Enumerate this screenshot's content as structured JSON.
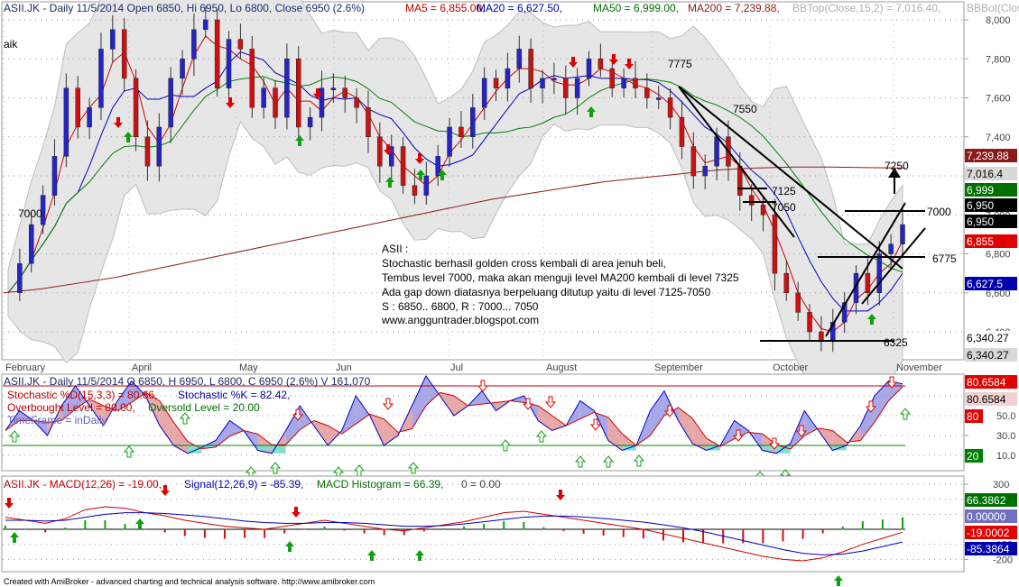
{
  "price_pane": {
    "header": [
      {
        "text": "ASII.JK - Daily 11/5/2014 Open 6850, Hi 6950, Lo 6800, Close 6950 (2.6%)",
        "color": "#1f2a6b"
      },
      {
        "text": "MA5 = 6,855.00,",
        "color": "#c00000"
      },
      {
        "text": "MA20 = 6,627.50,",
        "color": "#0000b0"
      },
      {
        "text": "MA50 = 6,999.00,",
        "color": "#007000"
      },
      {
        "text": "MA200 = 7,239.88,",
        "color": "#8b1a1a"
      },
      {
        "text": "BBTop(Close,15,2) = 7,016.40,",
        "color": "#b0b0b0"
      },
      {
        "text": "BBBot(Clos",
        "color": "#b0b0b0"
      }
    ],
    "fragment": "aik",
    "y_ticks": [
      "8,000",
      "7,800",
      "7,600",
      "7,400",
      "7,200",
      "7,000",
      "6,800",
      "6,600",
      "6,400"
    ],
    "y_range": [
      6320,
      8040
    ],
    "right_tags": [
      {
        "text": "7,239.88",
        "bg": "#8b1a1a",
        "fg": "#ffffff",
        "v": 7239.88
      },
      {
        "text": "7,016.4",
        "bg": "#d8d8d8",
        "fg": "#000000",
        "v": 7016.4
      },
      {
        "text": "6,999",
        "bg": "#007000",
        "fg": "#ffffff",
        "v": 6999
      },
      {
        "text": "6,950",
        "bg": "#000000",
        "fg": "#ffffff",
        "v": 6950
      },
      {
        "text": "6,950",
        "bg": "#000000",
        "fg": "#ffffff",
        "v": 6950
      },
      {
        "text": "6,855",
        "bg": "#e00000",
        "fg": "#ffffff",
        "v": 6855
      },
      {
        "text": "6,627.5",
        "bg": "#0000b0",
        "fg": "#ffffff",
        "v": 6627.5
      },
      {
        "text": "6,340.27",
        "bg": "#ffffff",
        "fg": "#000000",
        "v": 6340.27
      },
      {
        "text": "6,340.27",
        "bg": "#d8d8d8",
        "fg": "#000000",
        "v": 6340.27
      }
    ],
    "months": [
      "February",
      "April",
      "May",
      "Jun",
      "Jul",
      "August",
      "September",
      "October",
      "November"
    ],
    "level_labels": [
      "7000",
      "7775",
      "7550",
      "7125",
      "7050",
      "7250",
      "7000",
      "6775",
      "6325"
    ],
    "annotation": [
      "ASII :",
      "Stochastic berhasil golden cross kembali di area jenuh beli,",
      "Tembus level 7000, maka akan menguji level MA200 kembali di level 7325",
      "Ada gap down diatasnya berpeluang ditutup yaitu di level 7125-7050",
      "S : 6850.. 6800, R : 7000... 7050",
      "www.angguntrader.blogspot.com"
    ]
  },
  "stoch_pane": {
    "header": "ASII.JK - Daily 11/5/2014 O 6850, H 6950, L 6800, C 6950 (2.6%) V 161,070",
    "line2": [
      {
        "text": "Stochastic %D(15,3,3) = 80.66,",
        "color": "#c00000"
      },
      {
        "text": "Stochastic %K = 82.42,",
        "color": "#0000b0"
      }
    ],
    "line3": [
      {
        "text": "Overbought Level = 80.00,",
        "color": "#c00000"
      },
      {
        "text": "Oversold Level = 20.00",
        "color": "#007000"
      }
    ],
    "line4": {
      "text": "TimeFrame = inDaily",
      "color": "#6060c0"
    },
    "y_ticks": [
      "70.0",
      "50.0",
      "30.0",
      "10.0"
    ],
    "y_range": [
      0,
      100
    ],
    "right_tags": [
      {
        "text": "80.6584",
        "bg": "#e00000",
        "fg": "#ffffff",
        "v": 80.66
      },
      {
        "text": "80.6584",
        "bg": "#f0d0d0",
        "fg": "#000000",
        "v": 80.66
      },
      {
        "text": "80",
        "bg": "#e00000",
        "fg": "#ffffff",
        "v": 80
      },
      {
        "text": "20",
        "bg": "#008000",
        "fg": "#ffffff",
        "v": 20
      }
    ]
  },
  "macd_pane": {
    "header": [
      {
        "text": "ASII.JK - MACD(12,26) = -19.00,",
        "color": "#c00000"
      },
      {
        "text": "Signal(12,26,9) = -85.39,",
        "color": "#0000b0"
      },
      {
        "text": "MACD Histogram = 66.39,",
        "color": "#007000"
      },
      {
        "text": "0 = 0.00",
        "color": "#444444"
      }
    ],
    "y_ticks": [
      "300",
      "200",
      "100",
      "-100",
      "-200"
    ],
    "y_range": [
      -260,
      330
    ],
    "right_tags": [
      {
        "text": "66.3862",
        "bg": "#007000",
        "fg": "#ffffff",
        "v": 66.39
      },
      {
        "text": "0.00000",
        "bg": "#7070c0",
        "fg": "#ffffff",
        "v": 0
      },
      {
        "text": "-19.0002",
        "bg": "#e00000",
        "fg": "#ffffff",
        "v": -19
      },
      {
        "text": "-85.3864",
        "bg": "#0000b0",
        "fg": "#ffffff",
        "v": -85.39
      }
    ]
  },
  "footer": "Created with AmiBroker - advanced charting and technical analysis software. http://www.amibroker.com",
  "chart_data": {
    "type": "line",
    "title": "ASII.JK - Daily 11/5/2014 Open 6850, Hi 6950, Lo 6800, Close 6950 (2.6%)",
    "ohlc_last": {
      "open": 6850,
      "high": 6950,
      "low": 6800,
      "close": 6950,
      "change_pct": 2.6,
      "volume": 161070
    },
    "close_series_approx": [
      6600,
      6750,
      6950,
      7100,
      7300,
      7650,
      7450,
      7550,
      7850,
      7950,
      7700,
      7400,
      7250,
      7450,
      7700,
      7800,
      7950,
      8000,
      7650,
      7900,
      7850,
      7550,
      7650,
      7500,
      7800,
      7450,
      7500,
      7650,
      7650,
      7600,
      7550,
      7400,
      7250,
      7350,
      7150,
      7100,
      7200,
      7300,
      7450,
      7400,
      7550,
      7700,
      7650,
      7750,
      7850,
      7650,
      7700,
      7700,
      7600,
      7700,
      7800,
      7750,
      7650,
      7700,
      7650,
      7600,
      7600,
      7500,
      7350,
      7200,
      7250,
      7400,
      7250,
      7100,
      7050,
      7000,
      6700,
      6600,
      6500,
      6400,
      6350,
      6450,
      6550,
      6700,
      6600,
      6800,
      6850,
      6950
    ],
    "ma_values_last": {
      "MA5": 6855.0,
      "MA20": 6627.5,
      "MA50": 6999.0,
      "MA200": 7239.88,
      "BBTop": 7016.4
    },
    "ma200_series_approx": [
      6600,
      6620,
      6650,
      6680,
      6720,
      6760,
      6800,
      6840,
      6880,
      6920,
      6960,
      7000,
      7040,
      7080,
      7110,
      7140,
      7170,
      7190,
      7210,
      7230,
      7240,
      7245,
      7245,
      7242,
      7240
    ],
    "stochastic": {
      "D": 80.66,
      "K": 82.42,
      "overbought": 80,
      "oversold": 20
    },
    "stoch_k_series_approx": [
      35,
      55,
      45,
      30,
      60,
      80,
      60,
      40,
      65,
      85,
      70,
      40,
      20,
      12,
      18,
      25,
      45,
      35,
      15,
      12,
      35,
      60,
      40,
      20,
      35,
      70,
      50,
      20,
      30,
      60,
      90,
      70,
      50,
      60,
      75,
      55,
      65,
      70,
      45,
      35,
      40,
      65,
      55,
      25,
      15,
      20,
      55,
      75,
      45,
      22,
      15,
      20,
      45,
      35,
      15,
      12,
      22,
      55,
      35,
      15,
      20,
      40,
      70,
      85,
      82
    ],
    "macd": {
      "macd": -19.0,
      "signal": -85.39,
      "histogram": 66.39
    },
    "macd_series_approx": [
      80,
      60,
      40,
      70,
      130,
      150,
      140,
      110,
      90,
      60,
      40,
      20,
      10,
      0,
      20,
      40,
      60,
      40,
      20,
      0,
      -10,
      10,
      30,
      50,
      80,
      110,
      120,
      100,
      80,
      60,
      40,
      20,
      0,
      -30,
      -60,
      -90,
      -120,
      -150,
      -180,
      -200,
      -210,
      -190,
      -150,
      -100,
      -60,
      -19
    ],
    "signal_series_approx": [
      60,
      60,
      55,
      60,
      80,
      100,
      110,
      110,
      105,
      95,
      85,
      70,
      55,
      45,
      40,
      40,
      45,
      45,
      40,
      30,
      20,
      20,
      25,
      35,
      50,
      65,
      80,
      88,
      88,
      82,
      72,
      60,
      48,
      30,
      10,
      -15,
      -45,
      -75,
      -105,
      -135,
      -160,
      -170,
      -165,
      -145,
      -115,
      -85
    ]
  }
}
